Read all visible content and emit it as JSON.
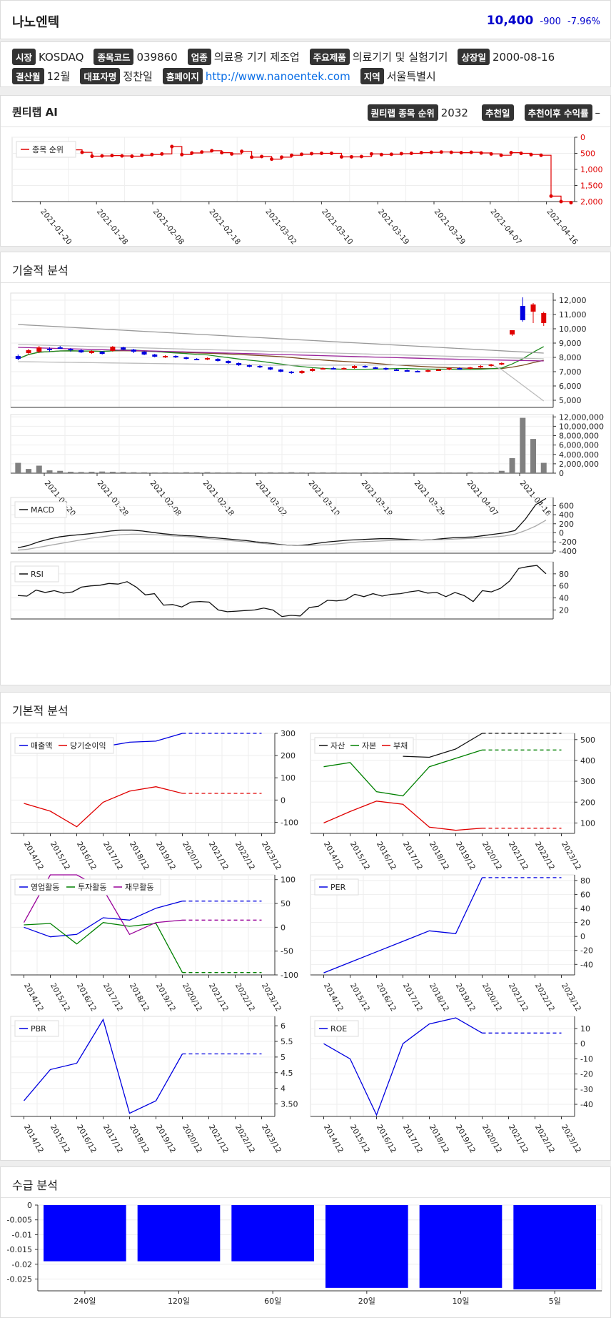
{
  "stock": {
    "name": "나노엔텍",
    "price": "10,400",
    "change": "-900",
    "change_pct": "-7.96%"
  },
  "info_row1": [
    {
      "label": "시장",
      "value": "KOSDAQ"
    },
    {
      "label": "종목코드",
      "value": "039860"
    },
    {
      "label": "업종",
      "value": "의료용 기기 제조업"
    },
    {
      "label": "주요제품",
      "value": "의료기기 및 실험기기"
    },
    {
      "label": "상장일",
      "value": "2000-08-16"
    }
  ],
  "info_row2": [
    {
      "label": "결산월",
      "value": "12월"
    },
    {
      "label": "대표자명",
      "value": "정찬일"
    },
    {
      "label": "홈페이지",
      "value": "http://www.nanoentek.com",
      "link": true
    },
    {
      "label": "지역",
      "value": "서울특별시"
    }
  ],
  "quantilab": {
    "title": "퀀티랩 AI",
    "rank_label": "퀀티랩 종목 순위",
    "rank_value": "2032",
    "rec_date_label": "추천일",
    "rec_return_label": "추천이후 수익률",
    "rec_return_value": "–"
  },
  "sections": {
    "technical": "기술적 분석",
    "fundamental": "기본적 분석",
    "supply": "수급 분석"
  },
  "colors": {
    "up": "#e00000",
    "down": "#0000e0",
    "accent": "#0000cc"
  },
  "dates": [
    "2021-01-20",
    "2021-01-28",
    "2021-02-08",
    "2021-02-18",
    "2021-03-02",
    "2021-03-10",
    "2021-03-19",
    "2021-03-29",
    "2021-04-07",
    "2021-04-16"
  ],
  "chart_data": [
    {
      "type": "line",
      "id": "rank",
      "series": [
        {
          "name": "종목 순위",
          "values": [
            400,
            390,
            470,
            590,
            580,
            570,
            580,
            590,
            560,
            540,
            520,
            290,
            540,
            490,
            460,
            420,
            480,
            520,
            440,
            620,
            600,
            680,
            620,
            560,
            530,
            510,
            500,
            500,
            610,
            610,
            600,
            520,
            540,
            530,
            510,
            500,
            480,
            470,
            460,
            470,
            480,
            470,
            490,
            520,
            560,
            480,
            500,
            540,
            560,
            1830,
            2000,
            2032
          ]
        }
      ],
      "yticks": [
        "0",
        "500",
        "1,000",
        "1,500",
        "2,000"
      ],
      "ylim": [
        0,
        2000
      ],
      "reversed": true
    },
    {
      "type": "candlestick",
      "id": "price",
      "ohlc": [
        [
          8100,
          8200,
          7800,
          7900
        ],
        [
          8300,
          8600,
          8200,
          8500
        ],
        [
          8400,
          8800,
          8300,
          8700
        ],
        [
          8600,
          8700,
          8400,
          8500
        ],
        [
          8700,
          8800,
          8600,
          8650
        ],
        [
          8600,
          8650,
          8400,
          8500
        ],
        [
          8500,
          8600,
          8300,
          8350
        ],
        [
          8300,
          8500,
          8250,
          8450
        ],
        [
          8400,
          8450,
          8200,
          8250
        ],
        [
          8450,
          8800,
          8400,
          8750
        ],
        [
          8700,
          8750,
          8500,
          8550
        ],
        [
          8550,
          8600,
          8300,
          8400
        ],
        [
          8400,
          8450,
          8150,
          8200
        ],
        [
          8200,
          8250,
          8000,
          8050
        ],
        [
          8050,
          8150,
          7950,
          8100
        ],
        [
          8100,
          8150,
          7950,
          8000
        ],
        [
          8000,
          8050,
          7850,
          7900
        ],
        [
          7900,
          7950,
          7800,
          7850
        ],
        [
          7850,
          8000,
          7800,
          7950
        ],
        [
          7900,
          7950,
          7700,
          7750
        ],
        [
          7750,
          7800,
          7550,
          7600
        ],
        [
          7600,
          7650,
          7400,
          7450
        ],
        [
          7450,
          7500,
          7300,
          7400
        ],
        [
          7400,
          7450,
          7250,
          7300
        ],
        [
          7300,
          7350,
          7100,
          7150
        ],
        [
          7150,
          7200,
          6950,
          7000
        ],
        [
          7000,
          7050,
          6850,
          6900
        ],
        [
          6900,
          7100,
          6850,
          7050
        ],
        [
          7050,
          7250,
          7000,
          7200
        ],
        [
          7200,
          7300,
          7150,
          7250
        ],
        [
          7250,
          7350,
          7150,
          7200
        ],
        [
          7200,
          7300,
          7150,
          7250
        ],
        [
          7250,
          7450,
          7200,
          7400
        ],
        [
          7400,
          7450,
          7250,
          7300
        ],
        [
          7300,
          7350,
          7200,
          7250
        ],
        [
          7250,
          7300,
          7100,
          7150
        ],
        [
          7150,
          7200,
          7050,
          7100
        ],
        [
          7100,
          7150,
          7000,
          7050
        ],
        [
          7050,
          7100,
          6950,
          7000
        ],
        [
          7000,
          7150,
          6950,
          7100
        ],
        [
          7100,
          7200,
          7050,
          7150
        ],
        [
          7150,
          7300,
          7100,
          7250
        ],
        [
          7250,
          7300,
          7150,
          7200
        ],
        [
          7200,
          7350,
          7150,
          7300
        ],
        [
          7300,
          7450,
          7250,
          7400
        ],
        [
          7400,
          7550,
          7350,
          7500
        ],
        [
          7500,
          7650,
          7450,
          7600
        ],
        [
          9600,
          9900,
          9500,
          9900
        ],
        [
          11600,
          12200,
          10500,
          10600
        ],
        [
          11200,
          11800,
          10400,
          11700
        ],
        [
          10400,
          11200,
          10200,
          11100
        ]
      ],
      "ylim": [
        4500,
        12500
      ],
      "yticks": [
        "5,000",
        "6,000",
        "7,000",
        "8,000",
        "9,000",
        "10,000",
        "11,000",
        "12,000"
      ]
    },
    {
      "type": "bar",
      "id": "volume",
      "values": [
        2200000,
        900000,
        1600000,
        600000,
        500000,
        300000,
        250000,
        300000,
        350000,
        300000,
        250000,
        200000,
        180000,
        150000,
        170000,
        150000,
        200000,
        180000,
        220000,
        160000,
        150000,
        170000,
        130000,
        150000,
        180000,
        160000,
        200000,
        150000,
        180000,
        170000,
        160000,
        140000,
        130000,
        150000,
        140000,
        160000,
        150000,
        140000,
        130000,
        120000,
        150000,
        140000,
        130000,
        200000,
        150000,
        180000,
        500000,
        3200000,
        11800000,
        7300000,
        2200000
      ],
      "ylim": [
        0,
        12500000
      ],
      "yticks": [
        "0",
        "2,000,000",
        "4,000,000",
        "6,000,000",
        "8,000,000",
        "10,000,000",
        "12,000,000"
      ]
    },
    {
      "type": "line",
      "id": "macd",
      "series": [
        {
          "name": "MACD",
          "values": [
            -330,
            -280,
            -200,
            -140,
            -90,
            -60,
            -40,
            -20,
            10,
            40,
            60,
            60,
            40,
            10,
            -20,
            -40,
            -60,
            -70,
            -90,
            -110,
            -130,
            -150,
            -170,
            -200,
            -220,
            -250,
            -270,
            -280,
            -260,
            -230,
            -200,
            -180,
            -160,
            -150,
            -140,
            -130,
            -130,
            -140,
            -150,
            -160,
            -150,
            -130,
            -110,
            -100,
            -90,
            -60,
            -30,
            0,
            50,
            300,
            620,
            760
          ]
        },
        {
          "name": "signal",
          "values": [
            -380,
            -360,
            -320,
            -280,
            -240,
            -200,
            -160,
            -120,
            -90,
            -60,
            -40,
            -30,
            -30,
            -40,
            -50,
            -70,
            -80,
            -100,
            -120,
            -140,
            -160,
            -180,
            -200,
            -220,
            -240,
            -260,
            -270,
            -280,
            -280,
            -270,
            -260,
            -240,
            -220,
            -200,
            -190,
            -180,
            -170,
            -165,
            -160,
            -160,
            -155,
            -150,
            -140,
            -130,
            -120,
            -110,
            -90,
            -70,
            -30,
            50,
            150,
            280
          ]
        }
      ],
      "yticks": [
        "-400",
        "-200",
        "0",
        "200",
        "400",
        "600"
      ],
      "ylim": [
        -450,
        780
      ]
    },
    {
      "type": "line",
      "id": "rsi",
      "series": [
        {
          "name": "RSI",
          "values": [
            44,
            43,
            53,
            49,
            52,
            48,
            50,
            58,
            60,
            61,
            64,
            63,
            67,
            58,
            45,
            47,
            28,
            29,
            25,
            33,
            34,
            33,
            20,
            17,
            18,
            19,
            20,
            23,
            20,
            9,
            11,
            10,
            24,
            26,
            36,
            35,
            37,
            46,
            42,
            47,
            43,
            46,
            47,
            50,
            52,
            48,
            49,
            42,
            49,
            44,
            34,
            52,
            50,
            56,
            68,
            89,
            92,
            94,
            80
          ]
        }
      ],
      "yticks": [
        "20",
        "40",
        "60",
        "80"
      ],
      "ylim": [
        5,
        100
      ]
    },
    {
      "type": "line",
      "id": "sales",
      "series": [
        {
          "name": "매출액",
          "values": [
            210,
            null,
            null,
            240,
            260,
            265,
            300,
            300,
            300,
            300
          ]
        },
        {
          "name": "당기순이익",
          "values": [
            -15,
            -50,
            -120,
            -10,
            40,
            60,
            30,
            30,
            30,
            30
          ]
        }
      ],
      "categories": [
        "2014/12",
        "2015/12",
        "2016/12",
        "2017/12",
        "2018/12",
        "2019/12",
        "2020/12",
        "2021/12",
        "2022/12",
        "2023/12"
      ],
      "yticks": [
        "-100",
        "0",
        "100",
        "200",
        "300"
      ],
      "ylim": [
        -150,
        300
      ]
    },
    {
      "type": "line",
      "id": "assets",
      "series": [
        {
          "name": "자산",
          "values": [
            null,
            null,
            null,
            420,
            415,
            455,
            530,
            530,
            530,
            530
          ]
        },
        {
          "name": "자본",
          "values": [
            370,
            390,
            250,
            230,
            370,
            410,
            450,
            450,
            450,
            450
          ]
        },
        {
          "name": "부채",
          "values": [
            100,
            155,
            205,
            190,
            80,
            65,
            75,
            75,
            75,
            75
          ]
        }
      ],
      "categories": [
        "2014/12",
        "2015/12",
        "2016/12",
        "2017/12",
        "2018/12",
        "2019/12",
        "2020/12",
        "2021/12",
        "2022/12",
        "2023/12"
      ],
      "yticks": [
        "100",
        "200",
        "300",
        "400",
        "500"
      ],
      "ylim": [
        50,
        530
      ]
    },
    {
      "type": "line",
      "id": "cashflow",
      "series": [
        {
          "name": "영업활동",
          "values": [
            0,
            -20,
            -15,
            20,
            15,
            40,
            55,
            55,
            55,
            55
          ]
        },
        {
          "name": "투자활동",
          "values": [
            5,
            8,
            -35,
            10,
            2,
            8,
            -95,
            -95,
            -95,
            -95
          ]
        },
        {
          "name": "재무활동",
          "values": [
            10,
            140,
            130,
            80,
            -15,
            10,
            15,
            15,
            15,
            15
          ]
        }
      ],
      "categories": [
        "2014/12",
        "2015/12",
        "2016/12",
        "2017/12",
        "2018/12",
        "2019/12",
        "2020/12",
        "2021/12",
        "2022/12",
        "2023/12"
      ],
      "yticks": [
        "-100",
        "-50",
        "0",
        "50",
        "100"
      ],
      "ylim": [
        -100,
        110
      ]
    },
    {
      "type": "line",
      "id": "per",
      "series": [
        {
          "name": "PER",
          "values": [
            -52,
            -37,
            -22,
            -7,
            8,
            4,
            84,
            84,
            84,
            84
          ]
        }
      ],
      "categories": [
        "2014/12",
        "2015/12",
        "2016/12",
        "2017/12",
        "2018/12",
        "2019/12",
        "2020/12",
        "2021/12",
        "2022/12",
        "2023/12"
      ],
      "yticks": [
        "-40",
        "-20",
        "0",
        "20",
        "40",
        "60",
        "80"
      ],
      "ylim": [
        -55,
        88
      ]
    },
    {
      "type": "line",
      "id": "pbr",
      "series": [
        {
          "name": "PBR",
          "values": [
            3.6,
            4.6,
            4.8,
            6.2,
            3.2,
            3.6,
            5.1,
            5.1,
            5.1,
            5.1
          ]
        }
      ],
      "categories": [
        "2014/12",
        "2015/12",
        "2016/12",
        "2017/12",
        "2018/12",
        "2019/12",
        "2020/12",
        "2021/12",
        "2022/12",
        "2023/12"
      ],
      "yticks": [
        "3.50",
        "4",
        "4.5",
        "5",
        "5.5",
        "6"
      ],
      "ylim": [
        3.1,
        6.3
      ]
    },
    {
      "type": "line",
      "id": "roe",
      "series": [
        {
          "name": "ROE",
          "values": [
            0,
            -10,
            -47,
            0,
            13,
            17,
            7,
            7,
            7,
            7
          ]
        }
      ],
      "categories": [
        "2014/12",
        "2015/12",
        "2016/12",
        "2017/12",
        "2018/12",
        "2019/12",
        "2020/12",
        "2021/12",
        "2022/12",
        "2023/12"
      ],
      "yticks": [
        "-40",
        "-30",
        "-20",
        "-10",
        "0",
        "10"
      ],
      "ylim": [
        -48,
        18
      ]
    },
    {
      "type": "bar",
      "id": "supply",
      "categories": [
        "240일",
        "120일",
        "60일",
        "20일",
        "10일",
        "5일"
      ],
      "values": [
        -0.019,
        -0.019,
        -0.019,
        -0.028,
        -0.028,
        -0.0285
      ],
      "yticks": [
        "0",
        "-0.005",
        "-0.01",
        "-0.015",
        "-0.02",
        "-0.025"
      ],
      "ylim": [
        -0.029,
        0
      ]
    }
  ]
}
